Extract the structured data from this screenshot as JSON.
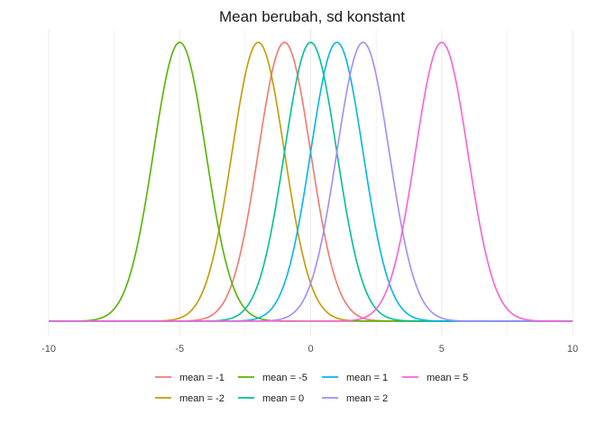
{
  "chart_data": {
    "type": "line",
    "title": "Mean berubah, sd konstant",
    "xlabel": "",
    "ylabel": "",
    "xlim": [
      -10,
      10
    ],
    "x_ticks": [
      -10,
      -5,
      0,
      5,
      10
    ],
    "x_tick_labels": [
      "-10",
      "-5",
      "0",
      "5",
      "10"
    ],
    "y_ticks_shown": false,
    "grid": "vertical",
    "legend_position": "bottom",
    "distribution": "normal",
    "sd": 1,
    "series": [
      {
        "name": "mean = -1",
        "mean": -1,
        "color": "#F8766D"
      },
      {
        "name": "mean = -2",
        "mean": -2,
        "color": "#C49A00"
      },
      {
        "name": "mean = -5",
        "mean": -5,
        "color": "#53B400"
      },
      {
        "name": "mean = 0",
        "mean": 0,
        "color": "#00C094"
      },
      {
        "name": "mean = 1",
        "mean": 1,
        "color": "#00B6EB"
      },
      {
        "name": "mean = 2",
        "mean": 2,
        "color": "#A58AFF"
      },
      {
        "name": "mean = 5",
        "mean": 5,
        "color": "#FB61D7"
      }
    ]
  }
}
